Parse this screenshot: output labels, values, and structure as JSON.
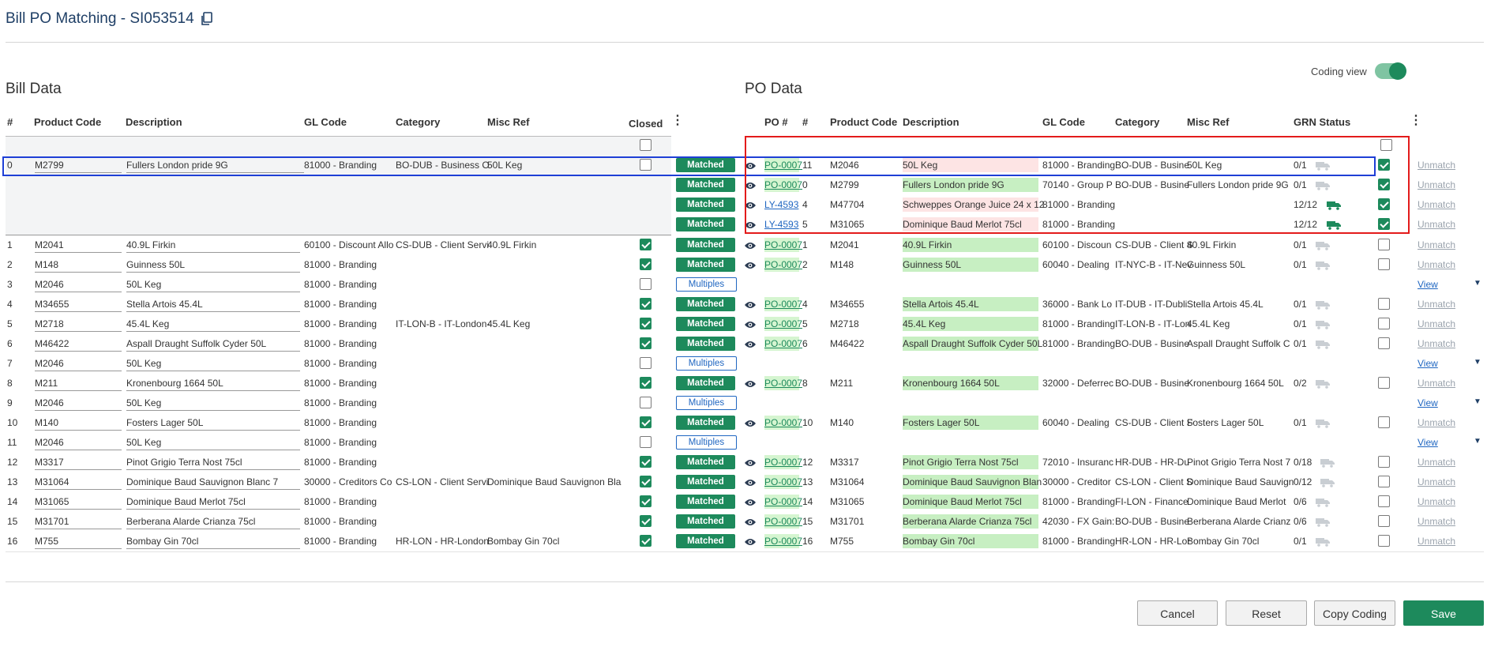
{
  "header": {
    "title": "Bill PO Matching - SI053514"
  },
  "bill": {
    "title": "Bill Data",
    "columns": {
      "num": "#",
      "product": "Product Code",
      "desc": "Description",
      "gl": "GL Code",
      "category": "Category",
      "misc": "Misc Ref",
      "closed": "Closed"
    }
  },
  "po_section": {
    "title": "PO Data",
    "coding_view_label": "Coding view",
    "columns": {
      "po": "PO #",
      "num": "#",
      "product": "Product Code",
      "desc": "Description",
      "gl": "GL Code",
      "category": "Category",
      "misc": "Misc Ref",
      "grn": "GRN Status"
    }
  },
  "selected_bill_row": {
    "num": "0",
    "product": "M2799",
    "desc": "Fullers London pride 9G",
    "gl": "81000 - Branding",
    "category": "BO-DUB - Business O",
    "misc": "50L Keg",
    "closed": false
  },
  "selected_po_rows": [
    {
      "status": "Matched",
      "po": "PO-0007",
      "num": "11",
      "product": "M2046",
      "desc": "50L Keg",
      "desc_hl": "r",
      "gl": "81000 - Branding",
      "category": "BO-DUB - Busine",
      "misc": "50L Keg",
      "grn": "0/1",
      "grn_full": false,
      "checked": true,
      "unmatch": "Unmatch"
    },
    {
      "status": "Matched",
      "po": "PO-0007",
      "num": "0",
      "product": "M2799",
      "desc": "Fullers London pride 9G",
      "desc_hl": "g",
      "gl": "70140 - Group P",
      "category": "BO-DUB - Busine",
      "misc": "Fullers London pride 9G",
      "grn": "0/1",
      "grn_full": false,
      "checked": true,
      "unmatch": "Unmatch"
    },
    {
      "status": "Matched",
      "po": "LY-4593",
      "num": "4",
      "product": "M47704",
      "desc": "Schweppes Orange Juice 24 x 12",
      "desc_hl": "r",
      "gl": "81000 - Branding",
      "category": "",
      "misc": "",
      "grn": "12/12",
      "grn_full": true,
      "checked": true,
      "unmatch": "Unmatch"
    },
    {
      "status": "Matched",
      "po": "LY-4593",
      "num": "5",
      "product": "M31065",
      "desc": "Dominique Baud Merlot 75cl",
      "desc_hl": "r",
      "gl": "81000 - Branding",
      "category": "",
      "misc": "",
      "grn": "12/12",
      "grn_full": true,
      "checked": true,
      "unmatch": "Unmatch"
    }
  ],
  "rows": [
    {
      "num": "1",
      "product": "M2041",
      "desc": "40.9L Firkin",
      "gl": "60100 - Discount Allo",
      "cat": "CS-DUB - Client Servi",
      "misc": "40.9L Firkin",
      "closed": true,
      "status": "Matched",
      "po": "PO-0007",
      "pnum": "1",
      "pprod": "M2041",
      "pdesc": "40.9L Firkin",
      "pgl": "60100 - Discoun",
      "pcat": "CS-DUB - Client S",
      "pmisc": "40.9L Firkin",
      "grn": "0/1",
      "link": "Unmatch"
    },
    {
      "num": "2",
      "product": "M148",
      "desc": "Guinness  50L",
      "gl": "81000 - Branding",
      "cat": "",
      "misc": "",
      "closed": true,
      "status": "Matched",
      "po": "PO-0007",
      "pnum": "2",
      "pprod": "M148",
      "pdesc": "Guinness 50L",
      "pgl": "60040 - Dealing",
      "pcat": "IT-NYC-B - IT-Nev",
      "pmisc": "Guinness 50L",
      "grn": "0/1",
      "link": "Unmatch"
    },
    {
      "num": "3",
      "product": "M2046",
      "desc": "50L Keg",
      "gl": "81000 - Branding",
      "cat": "",
      "misc": "",
      "closed": false,
      "status": "Multiples",
      "po": "",
      "pnum": "",
      "pprod": "",
      "pdesc": "",
      "pgl": "",
      "pcat": "",
      "pmisc": "",
      "grn": "",
      "link": "View"
    },
    {
      "num": "4",
      "product": "M34655",
      "desc": "Stella Artois  45.4L",
      "gl": "81000 - Branding",
      "cat": "",
      "misc": "",
      "closed": true,
      "status": "Matched",
      "po": "PO-0007",
      "pnum": "4",
      "pprod": "M34655",
      "pdesc": "Stella Artois 45.4L",
      "pgl": "36000 - Bank Lo",
      "pcat": "IT-DUB - IT-Dubli",
      "pmisc": "Stella Artois 45.4L",
      "grn": "0/1",
      "link": "Unmatch"
    },
    {
      "num": "5",
      "product": "M2718",
      "desc": "45.4L Keg",
      "gl": "81000 - Branding",
      "cat": "IT-LON-B - IT-London-",
      "misc": "45.4L Keg",
      "closed": true,
      "status": "Matched",
      "po": "PO-0007",
      "pnum": "5",
      "pprod": "M2718",
      "pdesc": "45.4L Keg",
      "pgl": "81000 - Branding",
      "pcat": "IT-LON-B - IT-Lon",
      "pmisc": "45.4L Keg",
      "grn": "0/1",
      "link": "Unmatch"
    },
    {
      "num": "6",
      "product": "M46422",
      "desc": "Aspall Draught Suffolk Cyder 50L",
      "gl": "81000 - Branding",
      "cat": "",
      "misc": "",
      "closed": true,
      "status": "Matched",
      "po": "PO-0007",
      "pnum": "6",
      "pprod": "M46422",
      "pdesc": "Aspall Draught Suffolk Cyder 50L",
      "pgl": "81000 - Branding",
      "pcat": "BO-DUB - Busine",
      "pmisc": "Aspall Draught Suffolk C",
      "grn": "0/1",
      "link": "Unmatch"
    },
    {
      "num": "7",
      "product": "M2046",
      "desc": "50L Keg",
      "gl": "81000 - Branding",
      "cat": "",
      "misc": "",
      "closed": false,
      "status": "Multiples",
      "po": "",
      "pnum": "",
      "pprod": "",
      "pdesc": "",
      "pgl": "",
      "pcat": "",
      "pmisc": "",
      "grn": "",
      "link": "View"
    },
    {
      "num": "8",
      "product": "M211",
      "desc": "Kronenbourg 1664  50L",
      "gl": "81000 - Branding",
      "cat": "",
      "misc": "",
      "closed": true,
      "status": "Matched",
      "po": "PO-0007",
      "pnum": "8",
      "pprod": "M211",
      "pdesc": "Kronenbourg 1664 50L",
      "pgl": "32000 - Deferrec",
      "pcat": "BO-DUB - Busine",
      "pmisc": "Kronenbourg 1664 50L",
      "grn": "0/2",
      "link": "Unmatch"
    },
    {
      "num": "9",
      "product": "M2046",
      "desc": "50L Keg",
      "gl": "81000 - Branding",
      "cat": "",
      "misc": "",
      "closed": false,
      "status": "Multiples",
      "po": "",
      "pnum": "",
      "pprod": "",
      "pdesc": "",
      "pgl": "",
      "pcat": "",
      "pmisc": "",
      "grn": "",
      "link": "View"
    },
    {
      "num": "10",
      "product": "M140",
      "desc": "Fosters Lager  50L",
      "gl": "81000 - Branding",
      "cat": "",
      "misc": "",
      "closed": true,
      "status": "Matched",
      "po": "PO-0007",
      "pnum": "10",
      "pprod": "M140",
      "pdesc": "Fosters Lager 50L",
      "pgl": "60040 - Dealing",
      "pcat": "CS-DUB - Client S",
      "pmisc": "Fosters Lager 50L",
      "grn": "0/1",
      "link": "Unmatch"
    },
    {
      "num": "11",
      "product": "M2046",
      "desc": "50L Keg",
      "gl": "81000 - Branding",
      "cat": "",
      "misc": "",
      "closed": false,
      "status": "Multiples",
      "po": "",
      "pnum": "",
      "pprod": "",
      "pdesc": "",
      "pgl": "",
      "pcat": "",
      "pmisc": "",
      "grn": "",
      "link": "View"
    },
    {
      "num": "12",
      "product": "M3317",
      "desc": "Pinot Grigio Terra Nost  75cl",
      "gl": "81000 - Branding",
      "cat": "",
      "misc": "",
      "closed": true,
      "status": "Matched",
      "po": "PO-0007",
      "pnum": "12",
      "pprod": "M3317",
      "pdesc": "Pinot Grigio Terra Nost 75cl",
      "pgl": "72010 - Insuranc",
      "pcat": "HR-DUB - HR-Du",
      "pmisc": "Pinot Grigio Terra Nost 7",
      "grn": "0/18",
      "link": "Unmatch"
    },
    {
      "num": "13",
      "product": "M31064",
      "desc": "Dominique Baud Sauvignon Blanc  7",
      "gl": "30000 - Creditors Co",
      "cat": "CS-LON - Client Servi",
      "misc": "Dominique Baud Sauvignon Bla",
      "closed": true,
      "status": "Matched",
      "po": "PO-0007",
      "pnum": "13",
      "pprod": "M31064",
      "pdesc": "Dominique Baud Sauvignon Blan",
      "pgl": "30000 - Creditor",
      "pcat": "CS-LON - Client S",
      "pmisc": "Dominique Baud Sauvign",
      "grn": "0/12",
      "link": "Unmatch"
    },
    {
      "num": "14",
      "product": "M31065",
      "desc": "Dominique Baud Merlot  75cl",
      "gl": "81000 - Branding",
      "cat": "",
      "misc": "",
      "closed": true,
      "status": "Matched",
      "po": "PO-0007",
      "pnum": "14",
      "pprod": "M31065",
      "pdesc": "Dominique Baud Merlot 75cl",
      "pgl": "81000 - Branding",
      "pcat": "FI-LON - Finance",
      "pmisc": "Dominique Baud Merlot",
      "grn": "0/6",
      "link": "Unmatch"
    },
    {
      "num": "15",
      "product": "M31701",
      "desc": "Berberana Alarde Crianza  75cl",
      "gl": "81000 - Branding",
      "cat": "",
      "misc": "",
      "closed": true,
      "status": "Matched",
      "po": "PO-0007",
      "pnum": "15",
      "pprod": "M31701",
      "pdesc": "Berberana Alarde Crianza 75cl",
      "pgl": "42030 - FX Gain:",
      "pcat": "BO-DUB - Busine",
      "pmisc": "Berberana Alarde Crianz",
      "grn": "0/6",
      "link": "Unmatch"
    },
    {
      "num": "16",
      "product": "M755",
      "desc": "Bombay Gin  70cl",
      "gl": "81000 - Branding",
      "cat": "HR-LON - HR-London",
      "misc": "Bombay Gin 70cl",
      "closed": true,
      "status": "Matched",
      "po": "PO-0007",
      "pnum": "16",
      "pprod": "M755",
      "pdesc": "Bombay Gin 70cl",
      "pgl": "81000 - Branding",
      "pcat": "HR-LON - HR-Lor",
      "pmisc": "Bombay Gin 70cl",
      "grn": "0/1",
      "link": "Unmatch"
    }
  ],
  "footer": {
    "cancel": "Cancel",
    "reset": "Reset",
    "copy": "Copy Coding",
    "save": "Save"
  },
  "colors": {
    "accent": "#1d8a5c",
    "link": "#1f66c1",
    "title": "#1f3f66",
    "match_green": "#c7efc2",
    "mismatch_red": "#fde4e4",
    "annotation_blue": "#1e3fd6",
    "annotation_red": "#e31b1b"
  }
}
